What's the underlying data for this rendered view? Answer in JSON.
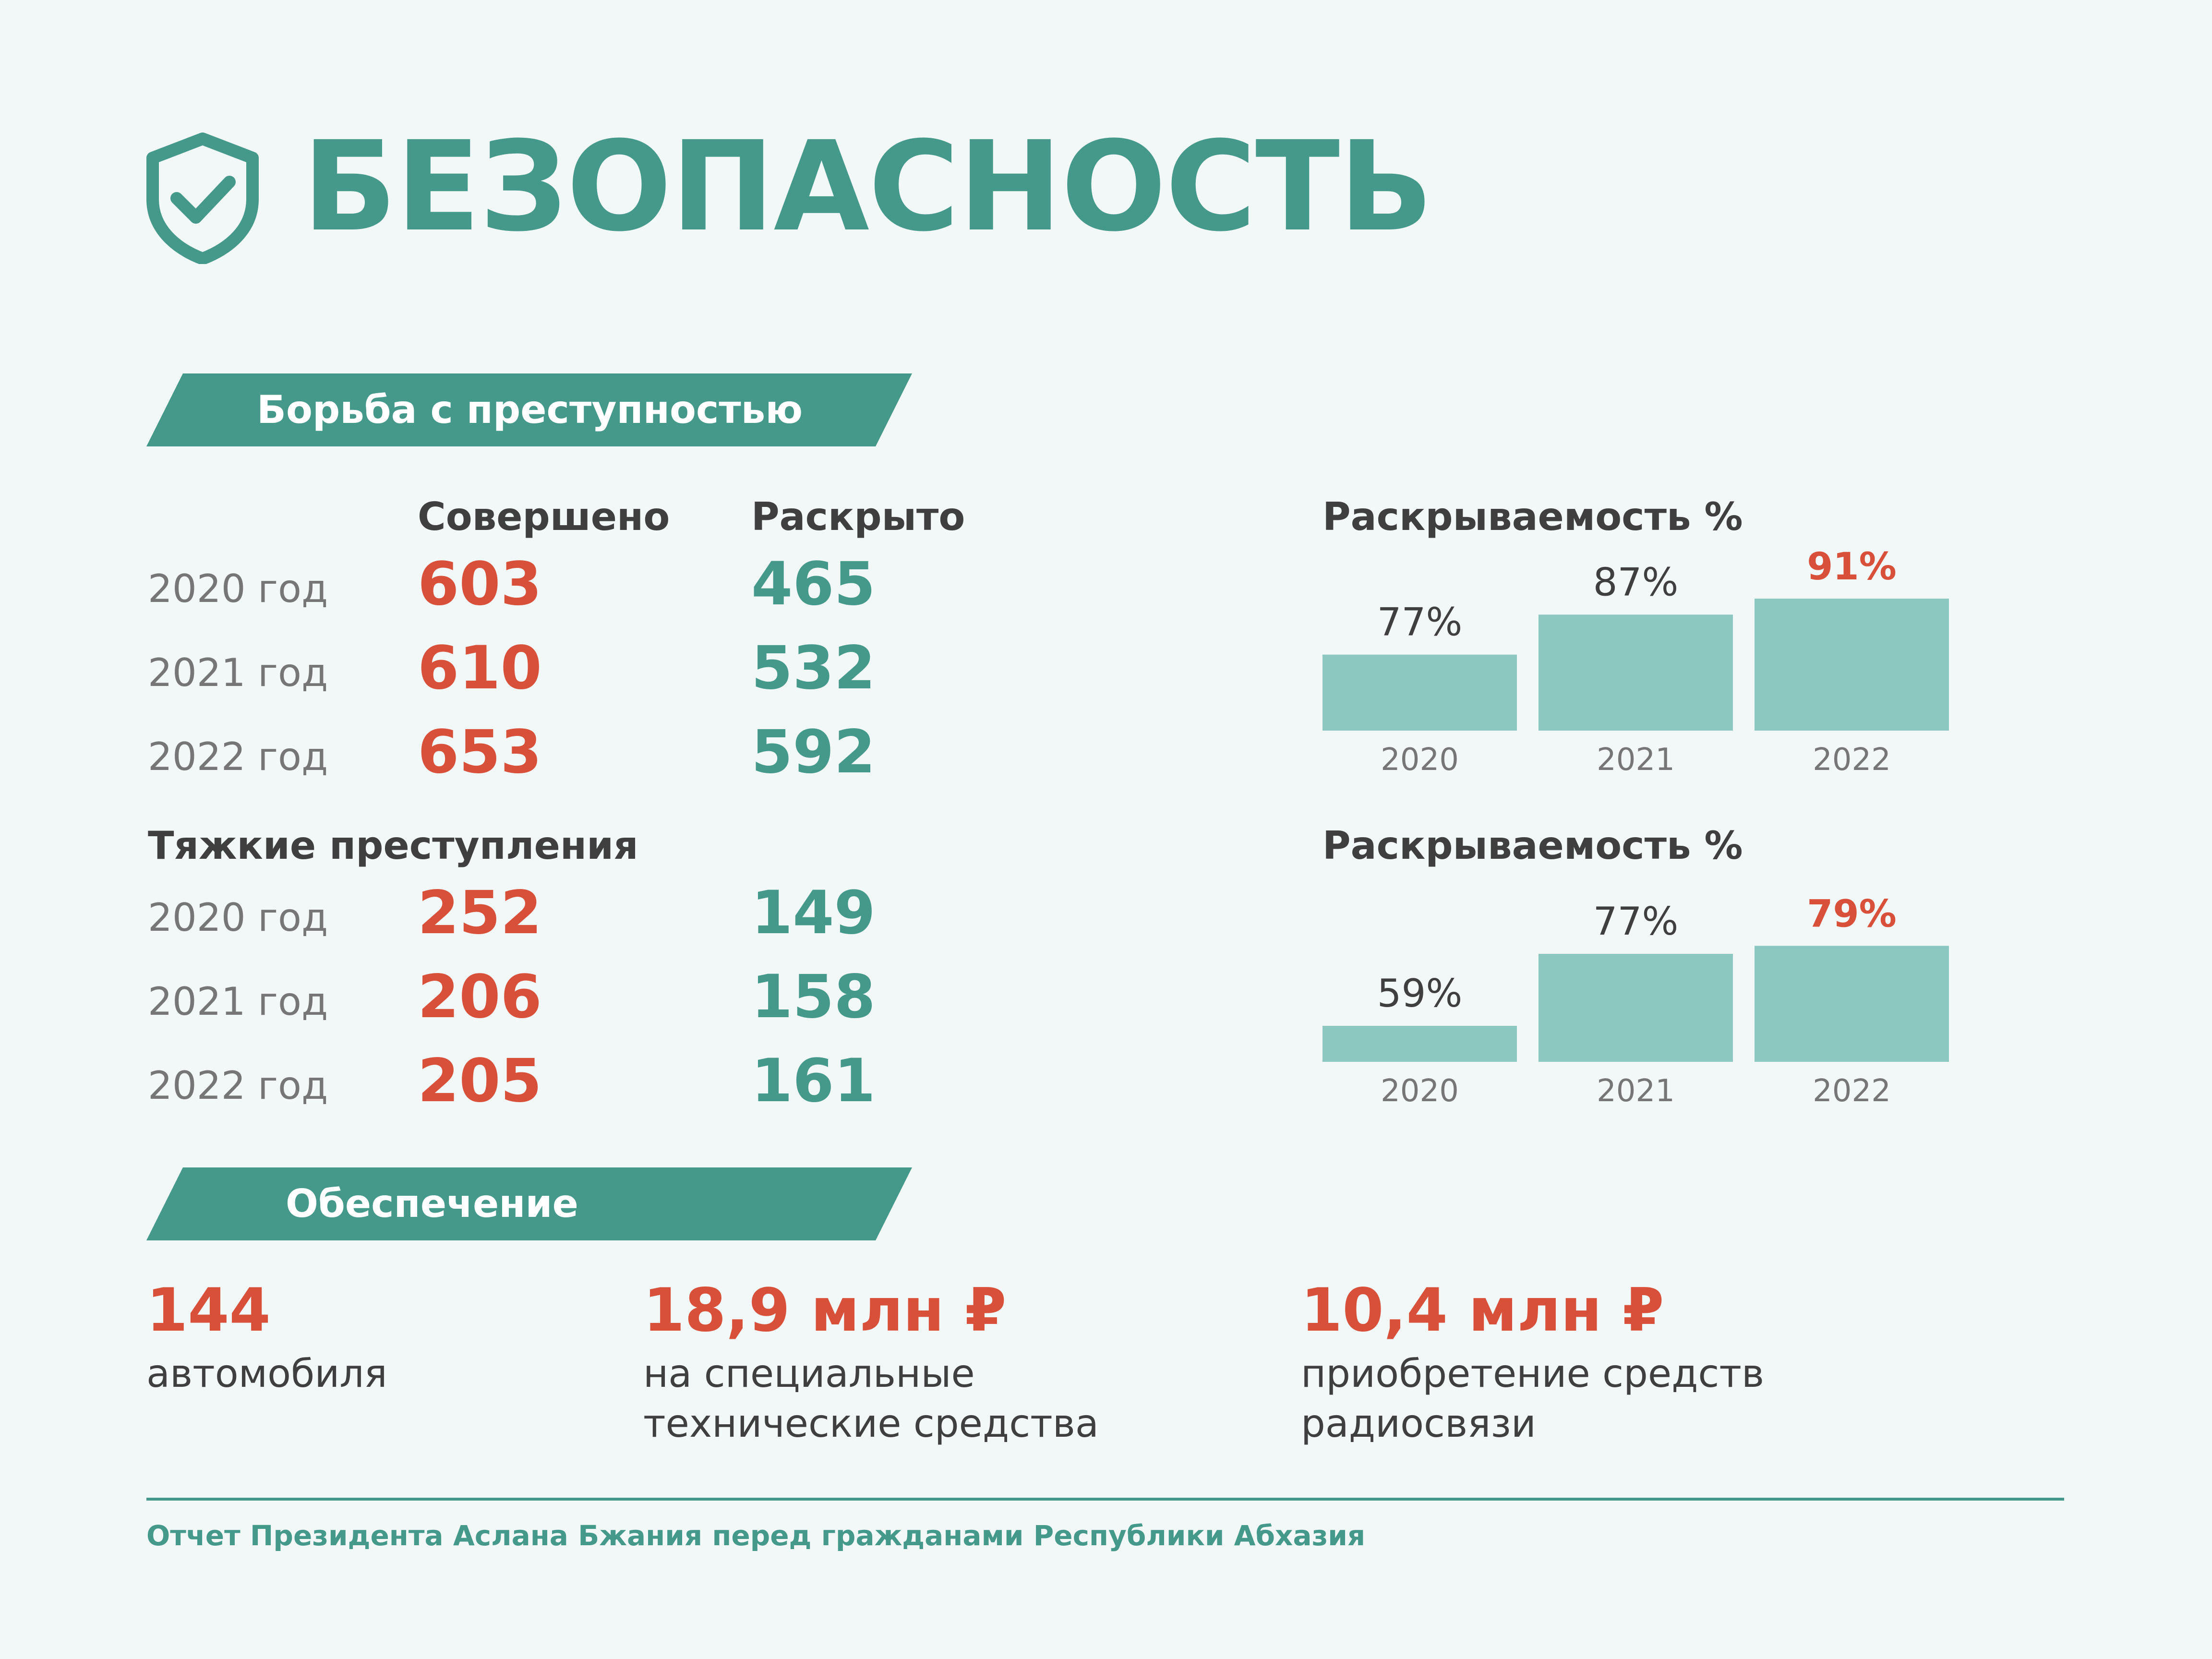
{
  "header": {
    "title": "БЕЗОПАСНОСТЬ",
    "icon": "shield-check-icon"
  },
  "crime": {
    "banner": "Борьба с преступностью",
    "col_committed": "Совершено",
    "col_solved": "Раскрыто",
    "rows": [
      {
        "year": "2020 год",
        "committed": "603",
        "solved": "465"
      },
      {
        "year": "2021 год",
        "committed": "610",
        "solved": "532"
      },
      {
        "year": "2022 год",
        "committed": "653",
        "solved": "592"
      }
    ],
    "grave_title": "Тяжкие преступления",
    "grave_rows": [
      {
        "year": "2020 год",
        "committed": "252",
        "solved": "149"
      },
      {
        "year": "2021 год",
        "committed": "206",
        "solved": "158"
      },
      {
        "year": "2022 год",
        "committed": "205",
        "solved": "161"
      }
    ]
  },
  "supply": {
    "banner": "Обеспечение",
    "items": [
      {
        "value": "144",
        "desc_line1": "автомобиля",
        "desc_line2": ""
      },
      {
        "value": "18,9 млн ₽",
        "desc_line1": "на специальные",
        "desc_line2": "технические средства"
      },
      {
        "value": "10,4 млн ₽",
        "desc_line1": "приобретение средств",
        "desc_line2": "радиосвязи"
      }
    ]
  },
  "footer": {
    "text": "Отчет Президента Аслана Бжания перед гражданами Республики Абхазия"
  },
  "colors": {
    "accent": "#45998b",
    "bar": "#8cc8bf",
    "highlight": "#d9503a",
    "text": "#3f3f3f"
  },
  "chart_data": [
    {
      "type": "bar",
      "title": "Раскрываемость %",
      "categories": [
        "2020",
        "2021",
        "2022"
      ],
      "values": [
        77,
        87,
        91
      ],
      "labels": [
        "77%",
        "87%",
        "91%"
      ],
      "highlight_index": 2,
      "ylim": [
        58,
        94
      ]
    },
    {
      "type": "bar",
      "title": "Раскрываемость %",
      "categories": [
        "2020",
        "2021",
        "2022"
      ],
      "values": [
        59,
        77,
        79
      ],
      "labels": [
        "59%",
        "77%",
        "79%"
      ],
      "highlight_index": 2,
      "ylim": [
        50,
        86
      ]
    }
  ]
}
